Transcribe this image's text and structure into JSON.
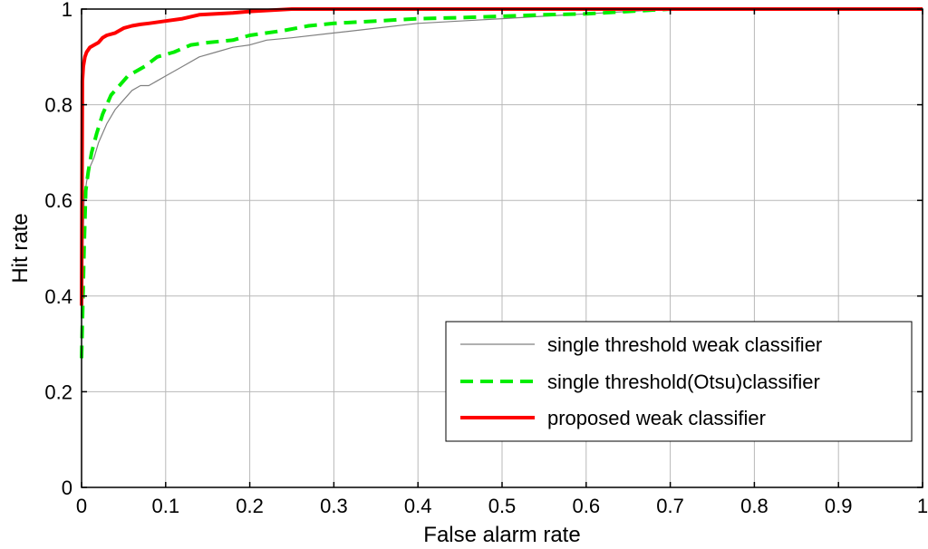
{
  "chart_data": {
    "type": "line",
    "title": "",
    "xlabel": "False alarm rate",
    "ylabel": "Hit rate",
    "xlim": [
      0,
      1
    ],
    "ylim": [
      0,
      1
    ],
    "xticks": [
      "0",
      "0.1",
      "0.2",
      "0.3",
      "0.4",
      "0.5",
      "0.6",
      "0.7",
      "0.8",
      "0.9",
      "1"
    ],
    "yticks": [
      "0",
      "0.2",
      "0.4",
      "0.6",
      "0.8",
      "1"
    ],
    "grid": true,
    "legend_position": "bottom-right",
    "series": [
      {
        "name": "single threshold weak classifier",
        "color": "#808080",
        "style": "solid-thin",
        "x": [
          0,
          0.003,
          0.006,
          0.01,
          0.015,
          0.02,
          0.03,
          0.04,
          0.05,
          0.06,
          0.07,
          0.08,
          0.09,
          0.1,
          0.12,
          0.14,
          0.16,
          0.18,
          0.2,
          0.22,
          0.25,
          0.3,
          0.35,
          0.4,
          0.45,
          0.5,
          0.55,
          0.6,
          0.65,
          0.7,
          1
        ],
        "y": [
          0.37,
          0.6,
          0.64,
          0.67,
          0.69,
          0.72,
          0.76,
          0.79,
          0.81,
          0.83,
          0.84,
          0.84,
          0.85,
          0.86,
          0.88,
          0.9,
          0.91,
          0.92,
          0.925,
          0.935,
          0.94,
          0.95,
          0.96,
          0.97,
          0.975,
          0.98,
          0.985,
          0.99,
          0.995,
          1.0,
          1.0
        ]
      },
      {
        "name": "single threshold(Otsu)classifier",
        "color": "#00ee00",
        "style": "dashed",
        "x": [
          0,
          0.003,
          0.005,
          0.008,
          0.012,
          0.018,
          0.025,
          0.035,
          0.045,
          0.055,
          0.065,
          0.075,
          0.09,
          0.11,
          0.13,
          0.15,
          0.18,
          0.2,
          0.24,
          0.27,
          0.3,
          0.35,
          0.4,
          0.45,
          0.5,
          0.55,
          0.6,
          0.65,
          0.7,
          0.85,
          0.9,
          0.97
        ],
        "y": [
          0.27,
          0.5,
          0.62,
          0.66,
          0.7,
          0.74,
          0.78,
          0.82,
          0.84,
          0.86,
          0.87,
          0.88,
          0.9,
          0.91,
          0.925,
          0.93,
          0.935,
          0.945,
          0.955,
          0.965,
          0.97,
          0.975,
          0.98,
          0.982,
          0.985,
          0.988,
          0.99,
          0.995,
          1.0,
          1.0,
          1.0,
          1.0
        ]
      },
      {
        "name": "proposed weak classifier",
        "color": "#ff0000",
        "style": "solid-thick",
        "x": [
          0,
          0.001,
          0.002,
          0.004,
          0.006,
          0.01,
          0.015,
          0.02,
          0.025,
          0.03,
          0.04,
          0.05,
          0.06,
          0.07,
          0.08,
          0.1,
          0.12,
          0.14,
          0.16,
          0.18,
          0.2,
          0.25,
          0.3,
          0.4,
          0.5,
          1
        ],
        "y": [
          0.38,
          0.85,
          0.88,
          0.9,
          0.91,
          0.92,
          0.925,
          0.93,
          0.94,
          0.945,
          0.95,
          0.96,
          0.965,
          0.968,
          0.97,
          0.975,
          0.98,
          0.988,
          0.99,
          0.992,
          0.995,
          1.0,
          1.0,
          1.0,
          1.0,
          1.0
        ]
      }
    ]
  }
}
